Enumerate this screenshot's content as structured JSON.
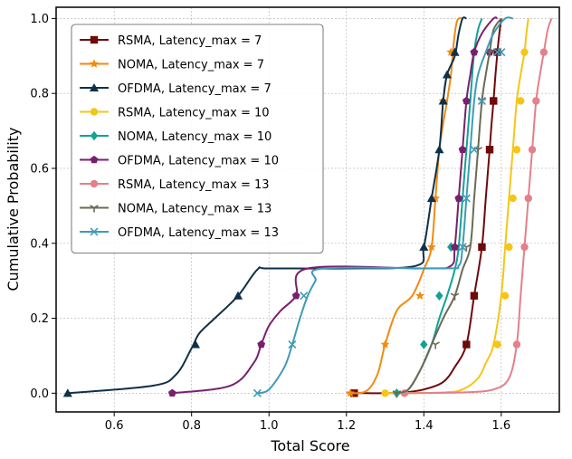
{
  "chart_data": {
    "type": "line",
    "title": "",
    "xlabel": "Total Score",
    "ylabel": "Cumulative Probability",
    "xlim": [
      0.45,
      1.75
    ],
    "ylim": [
      -0.05,
      1.03
    ],
    "xticks": [
      0.6,
      0.8,
      1.0,
      1.2,
      1.4,
      1.6
    ],
    "xtick_labels": [
      "0.6",
      "0.8",
      "1.0",
      "1.2",
      "1.4",
      "1.6"
    ],
    "yticks": [
      0.0,
      0.2,
      0.4,
      0.6,
      0.8,
      1.0
    ],
    "ytick_labels": [
      "0.0",
      "0.2",
      "0.4",
      "0.6",
      "0.8",
      "1.0"
    ],
    "grid": true,
    "legend_position": "upper-left",
    "series": [
      {
        "name": "RSMA, Latency_max = 7",
        "color": "#6e0a0a",
        "marker": "square",
        "x": [
          1.22,
          1.25,
          1.3,
          1.35,
          1.4,
          1.45,
          1.48,
          1.51,
          1.53,
          1.55,
          1.56,
          1.57,
          1.575,
          1.58,
          1.585,
          1.59,
          1.595,
          1.6
        ],
        "y": [
          0.0,
          0.0,
          0.0,
          0.002,
          0.01,
          0.03,
          0.07,
          0.13,
          0.26,
          0.39,
          0.52,
          0.65,
          0.72,
          0.78,
          0.85,
          0.91,
          0.96,
          1.0
        ],
        "markers_x": [
          1.22,
          1.51,
          1.53,
          1.55,
          1.57,
          1.58,
          1.59
        ],
        "markers_y": [
          0.0,
          0.13,
          0.26,
          0.39,
          0.65,
          0.78,
          0.91
        ]
      },
      {
        "name": "NOMA, Latency_max = 7",
        "color": "#f28a0f",
        "marker": "star",
        "x": [
          1.2,
          1.25,
          1.28,
          1.3,
          1.33,
          1.37,
          1.4,
          1.42,
          1.43,
          1.44,
          1.45,
          1.46,
          1.47,
          1.475,
          1.48,
          1.485,
          1.49,
          1.5
        ],
        "y": [
          0.0,
          0.005,
          0.05,
          0.13,
          0.22,
          0.26,
          0.33,
          0.39,
          0.52,
          0.65,
          0.72,
          0.78,
          0.85,
          0.91,
          0.96,
          0.99,
          1.0,
          1.0
        ],
        "markers_x": [
          1.21,
          1.3,
          1.39,
          1.42,
          1.43,
          1.45,
          1.47
        ],
        "markers_y": [
          0.0,
          0.13,
          0.26,
          0.39,
          0.52,
          0.78,
          0.91
        ]
      },
      {
        "name": "OFDMA, Latency_max = 7",
        "color": "#0f3049",
        "marker": "triangle",
        "x": [
          0.48,
          0.7,
          0.76,
          0.8,
          0.82,
          0.86,
          0.92,
          0.97,
          1.0,
          1.2,
          1.38,
          1.4,
          1.42,
          1.44,
          1.45,
          1.46,
          1.48,
          1.49,
          1.5,
          1.51
        ],
        "y": [
          0.0,
          0.02,
          0.05,
          0.12,
          0.16,
          0.2,
          0.26,
          0.33,
          0.333,
          0.333,
          0.34,
          0.39,
          0.52,
          0.65,
          0.78,
          0.85,
          0.9,
          0.96,
          1.0,
          1.0
        ],
        "markers_x": [
          0.48,
          0.81,
          0.92,
          1.4,
          1.42,
          1.44,
          1.45,
          1.46,
          1.48
        ],
        "markers_y": [
          0.0,
          0.13,
          0.26,
          0.39,
          0.52,
          0.65,
          0.78,
          0.85,
          0.91
        ]
      },
      {
        "name": "RSMA, Latency_max = 10",
        "color": "#f5c518",
        "marker": "circle",
        "x": [
          1.3,
          1.45,
          1.5,
          1.54,
          1.56,
          1.58,
          1.6,
          1.61,
          1.62,
          1.63,
          1.64,
          1.65,
          1.66,
          1.665,
          1.67
        ],
        "y": [
          0.0,
          0.002,
          0.01,
          0.04,
          0.08,
          0.13,
          0.26,
          0.39,
          0.52,
          0.65,
          0.78,
          0.85,
          0.91,
          0.96,
          1.0
        ],
        "markers_x": [
          1.3,
          1.59,
          1.61,
          1.62,
          1.63,
          1.64,
          1.65,
          1.66
        ],
        "markers_y": [
          0.0,
          0.13,
          0.26,
          0.39,
          0.52,
          0.65,
          0.78,
          0.91
        ]
      },
      {
        "name": "NOMA, Latency_max = 10",
        "color": "#12a392",
        "marker": "diamond",
        "x": [
          1.33,
          1.36,
          1.39,
          1.42,
          1.44,
          1.46,
          1.48,
          1.49,
          1.5,
          1.51,
          1.52,
          1.53,
          1.54,
          1.55
        ],
        "y": [
          0.0,
          0.01,
          0.06,
          0.13,
          0.2,
          0.26,
          0.33,
          0.39,
          0.52,
          0.65,
          0.78,
          0.91,
          0.97,
          1.0
        ],
        "markers_x": [
          1.33,
          1.4,
          1.44,
          1.47,
          1.49,
          1.51,
          1.53
        ],
        "markers_y": [
          0.0,
          0.13,
          0.26,
          0.39,
          0.52,
          0.78,
          0.91
        ]
      },
      {
        "name": "OFDMA, Latency_max = 10",
        "color": "#7a1f6d",
        "marker": "pentagon",
        "x": [
          0.75,
          0.9,
          0.96,
          0.98,
          1.0,
          1.03,
          1.07,
          1.1,
          1.4,
          1.47,
          1.48,
          1.49,
          1.5,
          1.51,
          1.52,
          1.53,
          1.55,
          1.58,
          1.59
        ],
        "y": [
          0.0,
          0.02,
          0.08,
          0.13,
          0.18,
          0.22,
          0.26,
          0.333,
          0.333,
          0.34,
          0.39,
          0.52,
          0.65,
          0.78,
          0.85,
          0.91,
          0.96,
          1.0,
          1.0
        ],
        "markers_x": [
          0.75,
          0.98,
          1.07,
          1.48,
          1.49,
          1.5,
          1.51,
          1.53,
          1.57
        ],
        "markers_y": [
          0.0,
          0.13,
          0.26,
          0.39,
          0.52,
          0.65,
          0.78,
          0.91,
          0.91
        ]
      },
      {
        "name": "RSMA, Latency_max = 13",
        "color": "#e3808a",
        "marker": "circle",
        "x": [
          1.35,
          1.5,
          1.58,
          1.62,
          1.64,
          1.65,
          1.66,
          1.67,
          1.68,
          1.69,
          1.7,
          1.71,
          1.72,
          1.73
        ],
        "y": [
          0.0,
          0.002,
          0.01,
          0.04,
          0.13,
          0.26,
          0.39,
          0.52,
          0.65,
          0.78,
          0.85,
          0.91,
          0.97,
          1.0
        ],
        "markers_x": [
          1.35,
          1.64,
          1.66,
          1.67,
          1.68,
          1.69,
          1.71
        ],
        "markers_y": [
          0.0,
          0.13,
          0.39,
          0.52,
          0.65,
          0.78,
          0.91
        ]
      },
      {
        "name": "NOMA, Latency_max = 13",
        "color": "#6b6b55",
        "marker": "tri_down",
        "x": [
          1.33,
          1.36,
          1.39,
          1.42,
          1.45,
          1.48,
          1.5,
          1.52,
          1.53,
          1.54,
          1.55,
          1.56,
          1.57,
          1.58,
          1.6
        ],
        "y": [
          0.0,
          0.01,
          0.06,
          0.13,
          0.2,
          0.26,
          0.33,
          0.39,
          0.52,
          0.65,
          0.78,
          0.85,
          0.91,
          0.97,
          1.0
        ],
        "markers_x": [
          1.33,
          1.43,
          1.48,
          1.51,
          1.54,
          1.55,
          1.57
        ],
        "markers_y": [
          0.0,
          0.13,
          0.26,
          0.39,
          0.65,
          0.78,
          0.91
        ]
      },
      {
        "name": "OFDMA, Latency_max = 13",
        "color": "#3f9bb8",
        "marker": "x",
        "x": [
          0.97,
          1.0,
          1.04,
          1.06,
          1.08,
          1.1,
          1.12,
          1.14,
          1.45,
          1.49,
          1.5,
          1.51,
          1.52,
          1.53,
          1.54,
          1.56,
          1.58,
          1.61,
          1.63
        ],
        "y": [
          0.0,
          0.01,
          0.07,
          0.13,
          0.2,
          0.26,
          0.3,
          0.333,
          0.333,
          0.34,
          0.39,
          0.52,
          0.65,
          0.78,
          0.85,
          0.91,
          0.96,
          1.0,
          1.0
        ],
        "markers_x": [
          0.97,
          1.06,
          1.09,
          1.5,
          1.51,
          1.53,
          1.55,
          1.59,
          1.6
        ],
        "markers_y": [
          0.0,
          0.13,
          0.26,
          0.39,
          0.52,
          0.65,
          0.78,
          0.91,
          0.91
        ]
      }
    ]
  }
}
